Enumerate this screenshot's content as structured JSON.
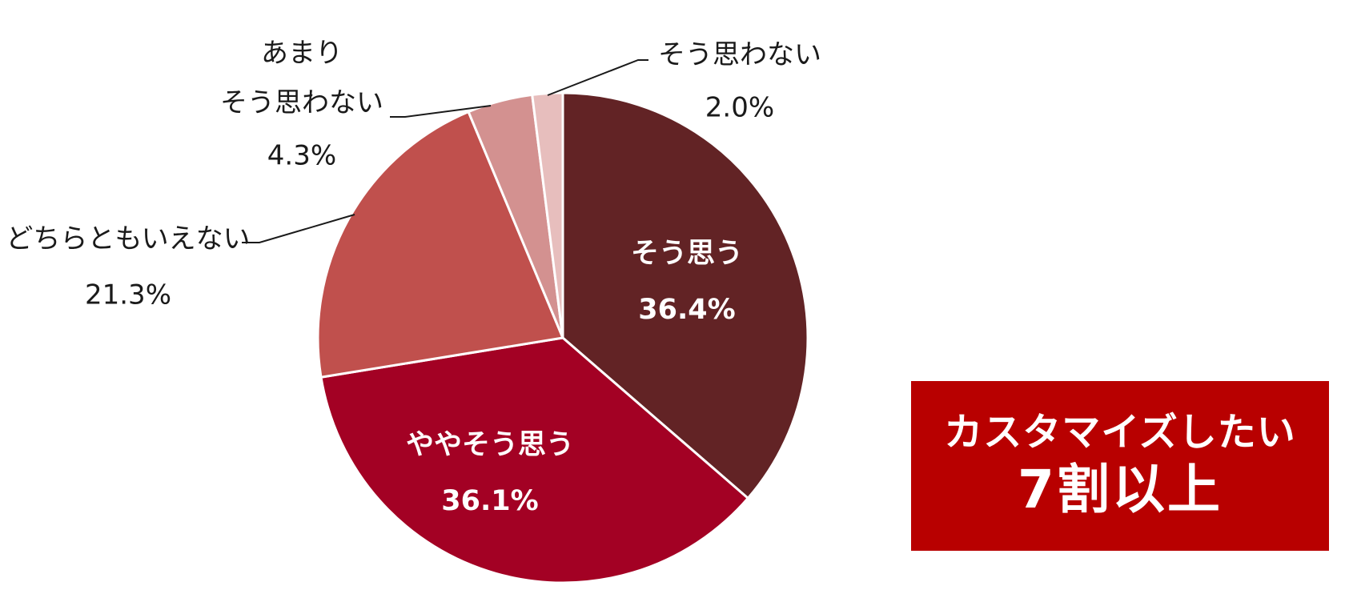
{
  "chart_data": {
    "type": "pie",
    "slices": [
      {
        "label_lines": [
          "そう思う"
        ],
        "value": 36.4,
        "display": "36.4%",
        "color": "#622325",
        "label_style": "inside"
      },
      {
        "label_lines": [
          "ややそう思う"
        ],
        "value": 36.1,
        "display": "36.1%",
        "color": "#a30124",
        "label_style": "inside"
      },
      {
        "label_lines": [
          "どちらともいえない"
        ],
        "value": 21.3,
        "display": "21.3%",
        "color": "#c0504d",
        "label_style": "outside"
      },
      {
        "label_lines": [
          "あまり",
          "そう思わない"
        ],
        "value": 4.3,
        "display": "4.3%",
        "color": "#d39190",
        "label_style": "outside"
      },
      {
        "label_lines": [
          "そう思わない"
        ],
        "value": 2.0,
        "display": "2.0%",
        "color": "#e7bebd",
        "label_style": "outside"
      }
    ],
    "start_angle": "12 o'clock",
    "direction": "clockwise",
    "legend": "none"
  },
  "callout": {
    "line1": "カスタマイズしたい",
    "line2": "7割以上",
    "background": "#b80000",
    "text_color": "#ffffff"
  }
}
